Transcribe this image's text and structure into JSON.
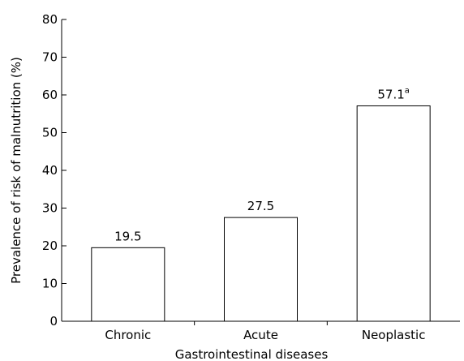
{
  "chart_data": {
    "type": "bar",
    "title": "",
    "xlabel": "Gastrointestinal diseases",
    "ylabel": "Prevalence of risk of malnutrition (%)",
    "ylim": [
      0,
      80
    ],
    "yticks": [
      0,
      10,
      20,
      30,
      40,
      50,
      60,
      70,
      80
    ],
    "grid": false,
    "categories": [
      "Chronic",
      "Acute",
      "Neoplastic"
    ],
    "values": [
      19.5,
      27.5,
      57.1
    ],
    "data_labels": [
      "19.5",
      "27.5",
      "57.1"
    ],
    "data_label_superscripts": [
      "",
      "",
      "a"
    ],
    "colors": {
      "bar_fill": "#ffffff",
      "bar_stroke": "#000000",
      "axis": "#000000"
    }
  }
}
